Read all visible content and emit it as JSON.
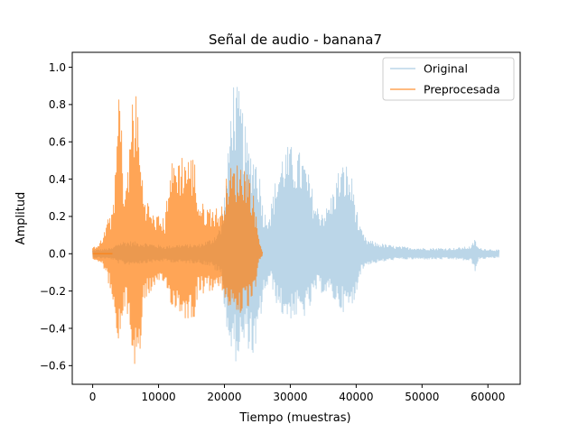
{
  "chart_data": {
    "type": "line",
    "title": "Señal de audio - banana7",
    "xlabel": "Tiempo (muestras)",
    "ylabel": "Amplitud",
    "xlim": [
      -3100,
      64900
    ],
    "ylim": [
      -0.7,
      1.08
    ],
    "xticks": [
      0,
      10000,
      20000,
      30000,
      40000,
      50000,
      60000
    ],
    "xtick_labels": [
      "0",
      "10000",
      "20000",
      "30000",
      "40000",
      "50000",
      "60000"
    ],
    "yticks": [
      -0.6,
      -0.4,
      -0.2,
      0.0,
      0.2,
      0.4,
      0.6,
      0.8,
      1.0
    ],
    "ytick_labels": [
      "−0.6",
      "−0.4",
      "−0.2",
      "0.0",
      "0.2",
      "0.4",
      "0.6",
      "0.8",
      "1.0"
    ],
    "grid": false,
    "legend_position": "top-right",
    "series": [
      {
        "name": "Original",
        "color": "#1f77b4",
        "alpha": 0.3,
        "length": 61700,
        "envelope": [
          [
            0,
            0.02,
            -0.02
          ],
          [
            3000,
            0.03,
            -0.03
          ],
          [
            3800,
            0.06,
            -0.05
          ],
          [
            5000,
            0.07,
            -0.06
          ],
          [
            8000,
            0.06,
            -0.05
          ],
          [
            11000,
            0.04,
            -0.04
          ],
          [
            13000,
            0.05,
            -0.05
          ],
          [
            16000,
            0.05,
            -0.05
          ],
          [
            18000,
            0.08,
            -0.07
          ],
          [
            19500,
            0.15,
            -0.12
          ],
          [
            20500,
            0.5,
            -0.45
          ],
          [
            21200,
            0.97,
            -0.6
          ],
          [
            22500,
            0.85,
            -0.55
          ],
          [
            23500,
            0.6,
            -0.5
          ],
          [
            24800,
            0.55,
            -0.6
          ],
          [
            25500,
            0.4,
            -0.35
          ],
          [
            26000,
            0.22,
            -0.22
          ],
          [
            27000,
            0.25,
            -0.15
          ],
          [
            28000,
            0.45,
            -0.28
          ],
          [
            29000,
            0.58,
            -0.35
          ],
          [
            30500,
            0.58,
            -0.35
          ],
          [
            32000,
            0.53,
            -0.35
          ],
          [
            33000,
            0.4,
            -0.3
          ],
          [
            34000,
            0.26,
            -0.2
          ],
          [
            35500,
            0.25,
            -0.22
          ],
          [
            36500,
            0.35,
            -0.25
          ],
          [
            37500,
            0.48,
            -0.3
          ],
          [
            38500,
            0.49,
            -0.32
          ],
          [
            39500,
            0.4,
            -0.3
          ],
          [
            40500,
            0.15,
            -0.12
          ],
          [
            41500,
            0.08,
            -0.06
          ],
          [
            43000,
            0.06,
            -0.05
          ],
          [
            46000,
            0.04,
            -0.03
          ],
          [
            50000,
            0.03,
            -0.03
          ],
          [
            55000,
            0.03,
            -0.03
          ],
          [
            57500,
            0.04,
            -0.04
          ],
          [
            58000,
            0.08,
            -0.1
          ],
          [
            58600,
            0.03,
            -0.03
          ],
          [
            61700,
            0.02,
            -0.02
          ]
        ]
      },
      {
        "name": "Preprocesada",
        "color": "#ff7f0e",
        "alpha": 0.7,
        "length": 25800,
        "envelope": [
          [
            0,
            0.03,
            -0.03
          ],
          [
            1500,
            0.08,
            -0.05
          ],
          [
            2000,
            0.16,
            -0.12
          ],
          [
            2800,
            0.22,
            -0.2
          ],
          [
            3500,
            0.45,
            -0.5
          ],
          [
            4000,
            1.0,
            -0.52
          ],
          [
            4800,
            0.35,
            -0.3
          ],
          [
            5500,
            0.5,
            -0.35
          ],
          [
            6000,
            0.9,
            -0.6
          ],
          [
            6800,
            0.85,
            -0.62
          ],
          [
            7200,
            0.55,
            -0.55
          ],
          [
            7800,
            0.35,
            -0.25
          ],
          [
            9000,
            0.22,
            -0.2
          ],
          [
            10500,
            0.2,
            -0.18
          ],
          [
            11000,
            0.18,
            -0.15
          ],
          [
            11500,
            0.45,
            -0.25
          ],
          [
            12500,
            0.53,
            -0.3
          ],
          [
            14000,
            0.55,
            -0.35
          ],
          [
            15500,
            0.52,
            -0.35
          ],
          [
            16000,
            0.3,
            -0.2
          ],
          [
            17000,
            0.26,
            -0.22
          ],
          [
            18000,
            0.26,
            -0.2
          ],
          [
            19500,
            0.24,
            -0.2
          ],
          [
            20500,
            0.45,
            -0.28
          ],
          [
            21000,
            0.47,
            -0.3
          ],
          [
            22500,
            0.5,
            -0.33
          ],
          [
            23500,
            0.48,
            -0.3
          ],
          [
            24500,
            0.3,
            -0.25
          ],
          [
            25200,
            0.1,
            -0.05
          ],
          [
            25800,
            0.01,
            -0.01
          ]
        ]
      }
    ]
  }
}
